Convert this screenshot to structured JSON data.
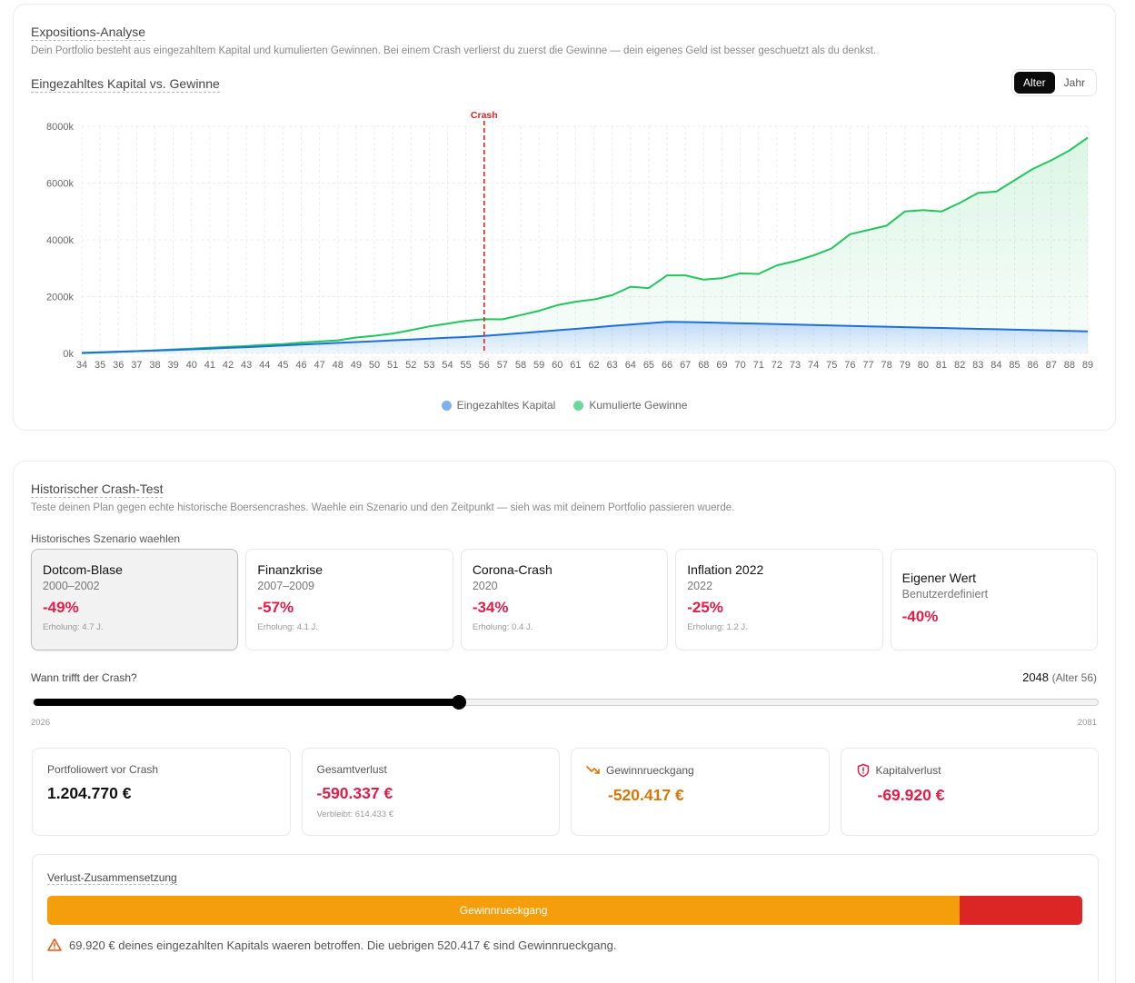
{
  "exposure": {
    "title": "Expositions-Analyse",
    "description": "Dein Portfolio besteht aus eingezahltem Kapital und kumulierten Gewinnen. Bei einem Crash verlierst du zuerst die Gewinne — dein eigenes Geld ist besser geschuetzt als du denkst.",
    "chart_title": "Eingezahltes Kapital vs. Gewinne",
    "toggle": {
      "options": [
        "Alter",
        "Jahr"
      ],
      "active": "Alter"
    }
  },
  "chart_data": {
    "type": "area",
    "title": "Eingezahltes Kapital vs. Gewinne",
    "xlabel": "Alter",
    "ylabel": "",
    "x": [
      34,
      35,
      36,
      37,
      38,
      39,
      40,
      41,
      42,
      43,
      44,
      45,
      46,
      47,
      48,
      49,
      50,
      51,
      52,
      53,
      54,
      55,
      56,
      57,
      58,
      59,
      60,
      61,
      62,
      63,
      64,
      65,
      66,
      67,
      68,
      69,
      70,
      71,
      72,
      73,
      74,
      75,
      76,
      77,
      78,
      79,
      80,
      81,
      82,
      83,
      84,
      85,
      86,
      87,
      88,
      89
    ],
    "ylim": [
      0,
      8000
    ],
    "yticks": [
      0,
      2000,
      4000,
      6000,
      8000
    ],
    "ytick_labels": [
      "0k",
      "2000k",
      "4000k",
      "6000k",
      "8000k"
    ],
    "series": [
      {
        "name": "Eingezahltes Kapital",
        "color": "#1e6fd9",
        "values": [
          20,
          40,
          60,
          80,
          100,
          120,
          145,
          170,
          195,
          220,
          250,
          280,
          310,
          340,
          370,
          400,
          430,
          460,
          490,
          520,
          550,
          580,
          615,
          665,
          715,
          765,
          815,
          865,
          915,
          965,
          1015,
          1065,
          1115,
          1105,
          1090,
          1075,
          1060,
          1045,
          1030,
          1015,
          1000,
          985,
          970,
          955,
          940,
          925,
          910,
          895,
          880,
          865,
          850,
          835,
          820,
          805,
          790,
          775
        ]
      },
      {
        "name": "Kumulierte Gewinne",
        "color": "#22c55e",
        "values": [
          10,
          30,
          55,
          80,
          110,
          140,
          170,
          200,
          230,
          260,
          300,
          330,
          380,
          420,
          460,
          560,
          620,
          700,
          820,
          950,
          1050,
          1150,
          1205,
          1200,
          1350,
          1500,
          1700,
          1820,
          1900,
          2050,
          2350,
          2300,
          2750,
          2750,
          2600,
          2650,
          2820,
          2800,
          3100,
          3250,
          3450,
          3700,
          4200,
          4350,
          4500,
          5000,
          5050,
          5000,
          5300,
          5650,
          5700,
          6100,
          6500,
          6800,
          7150,
          7600
        ]
      }
    ],
    "annotations": [
      {
        "type": "vline",
        "x": 56,
        "label": "Crash",
        "color": "#dc2626"
      }
    ],
    "legend": "bottom-center"
  },
  "crash_test": {
    "title": "Historischer Crash-Test",
    "description": "Teste deinen Plan gegen echte historische Boersencrashes. Waehle ein Szenario und den Zeitpunkt — sieh was mit deinem Portfolio passieren wuerde.",
    "scenario_label": "Historisches Szenario waehlen",
    "scenarios": [
      {
        "name": "Dotcom-Blase",
        "years": "2000–2002",
        "drop": "-49%",
        "recovery": "Erholung: 4.7 J.",
        "active": true
      },
      {
        "name": "Finanzkrise",
        "years": "2007–2009",
        "drop": "-57%",
        "recovery": "Erholung: 4.1 J.",
        "active": false
      },
      {
        "name": "Corona-Crash",
        "years": "2020",
        "drop": "-34%",
        "recovery": "Erholung: 0.4 J.",
        "active": false
      },
      {
        "name": "Inflation 2022",
        "years": "2022",
        "drop": "-25%",
        "recovery": "Erholung: 1.2 J.",
        "active": false
      },
      {
        "name": "Eigener Wert",
        "years": "Benutzerdefiniert",
        "drop": "-40%",
        "active": false
      }
    ],
    "timing_label": "Wann trifft der Crash?",
    "crash_year": "2048",
    "crash_age": "(Alter 56)",
    "slider": {
      "min_label": "2026",
      "max_label": "2081",
      "min": 2026,
      "max": 2081,
      "value": 2048
    }
  },
  "stats": {
    "before": {
      "label": "Portfoliowert vor Crash",
      "value": "1.204.770 €"
    },
    "total_loss": {
      "label": "Gesamtverlust",
      "value": "-590.337 €",
      "sub": "Verbleibt: 614.433 €"
    },
    "gain_loss": {
      "label": "Gewinnrueckgang",
      "value": "-520.417 €",
      "icon": "trending-down-icon",
      "color": "#d97706"
    },
    "capital_loss": {
      "label": "Kapitalverlust",
      "value": "-69.920 €",
      "icon": "shield-alert-icon",
      "color": "#e11d48"
    }
  },
  "composition": {
    "title": "Verlust-Zusammensetzung",
    "gain_segment_label": "Gewinnrueckgang",
    "gain_share": 0.8816,
    "gain_color": "#f59e0b",
    "capital_color": "#dc2626",
    "note": "69.920 € deines eingezahlten Kapitals waeren betroffen. Die uebrigen 520.417 € sind Gewinnrueckgang."
  }
}
